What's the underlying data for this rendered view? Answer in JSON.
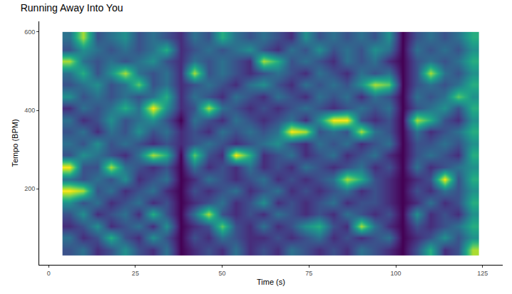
{
  "chart_data": {
    "type": "heatmap",
    "title": "Running Away Into You",
    "x_label": "Time (s)",
    "y_label": "Tempo (BPM)",
    "x": [
      6,
      10,
      14,
      18,
      22,
      26,
      30,
      34,
      38,
      42,
      46,
      50,
      54,
      58,
      62,
      66,
      70,
      74,
      78,
      82,
      86,
      90,
      94,
      98,
      102,
      106,
      110,
      114,
      118,
      122
    ],
    "y": [
      45,
      75,
      105,
      135,
      165,
      195,
      225,
      255,
      285,
      315,
      345,
      375,
      405,
      435,
      465,
      495,
      525,
      555,
      585
    ],
    "color": "viridis",
    "xlim": [
      -2.7,
      130.8
    ],
    "xticks": [
      0,
      25,
      50,
      75,
      100,
      125
    ],
    "ylim": [
      6,
      627
    ],
    "yticks": [
      200,
      400,
      600
    ],
    "z": [
      [
        3,
        4,
        2,
        3,
        5,
        3,
        2,
        4,
        1,
        2,
        3,
        2,
        4,
        2,
        3,
        2,
        4,
        3,
        2,
        3,
        2,
        4,
        3,
        2,
        1,
        3,
        6,
        2,
        3,
        8
      ],
      [
        4,
        2,
        3,
        6,
        3,
        2,
        5,
        3,
        1,
        3,
        2,
        4,
        3,
        2,
        2,
        3,
        2,
        3,
        4,
        2,
        3,
        2,
        3,
        4,
        1,
        2,
        3,
        5,
        3,
        5
      ],
      [
        2,
        3,
        5,
        2,
        3,
        4,
        2,
        5,
        1,
        2,
        3,
        7,
        3,
        2,
        4,
        2,
        3,
        5,
        6,
        3,
        2,
        8,
        4,
        2,
        1,
        3,
        2,
        3,
        4,
        6
      ],
      [
        3,
        5,
        2,
        3,
        4,
        2,
        6,
        3,
        1,
        4,
        8,
        3,
        2,
        3,
        2,
        4,
        3,
        2,
        3,
        2,
        4,
        3,
        2,
        3,
        1,
        5,
        2,
        3,
        2,
        5
      ],
      [
        5,
        3,
        4,
        2,
        3,
        4,
        2,
        3,
        1,
        2,
        3,
        4,
        2,
        3,
        5,
        2,
        3,
        2,
        3,
        4,
        2,
        3,
        3,
        2,
        1,
        2,
        4,
        2,
        3,
        6
      ],
      [
        9,
        8,
        3,
        4,
        2,
        3,
        4,
        2,
        1,
        3,
        2,
        3,
        4,
        2,
        3,
        4,
        2,
        3,
        2,
        3,
        4,
        2,
        3,
        2,
        1,
        3,
        2,
        4,
        3,
        5
      ],
      [
        4,
        3,
        4,
        3,
        5,
        2,
        3,
        4,
        1,
        2,
        4,
        3,
        2,
        3,
        4,
        2,
        3,
        2,
        3,
        4,
        8,
        6,
        3,
        2,
        1,
        2,
        3,
        9,
        3,
        6
      ],
      [
        9,
        3,
        3,
        8,
        4,
        3,
        2,
        3,
        1,
        4,
        2,
        3,
        2,
        4,
        2,
        3,
        2,
        4,
        3,
        2,
        3,
        4,
        2,
        3,
        1,
        4,
        2,
        3,
        4,
        5
      ],
      [
        3,
        5,
        4,
        3,
        2,
        4,
        8,
        6,
        1,
        7,
        3,
        2,
        9,
        6,
        2,
        3,
        4,
        2,
        3,
        4,
        2,
        3,
        4,
        2,
        1,
        3,
        4,
        3,
        2,
        6
      ],
      [
        4,
        3,
        5,
        3,
        4,
        3,
        2,
        3,
        2,
        3,
        4,
        3,
        2,
        3,
        4,
        5,
        3,
        2,
        4,
        3,
        4,
        2,
        3,
        4,
        1,
        3,
        3,
        4,
        3,
        5
      ],
      [
        3,
        4,
        2,
        4,
        3,
        5,
        3,
        4,
        2,
        3,
        2,
        4,
        3,
        4,
        3,
        4,
        9,
        8,
        3,
        4,
        3,
        8,
        4,
        3,
        1,
        4,
        2,
        3,
        4,
        6
      ],
      [
        4,
        2,
        3,
        5,
        3,
        4,
        5,
        3,
        1,
        4,
        3,
        2,
        4,
        3,
        2,
        3,
        4,
        2,
        5,
        9,
        9,
        3,
        2,
        3,
        1,
        8,
        6,
        3,
        2,
        5
      ],
      [
        2,
        4,
        3,
        4,
        6,
        4,
        9,
        5,
        2,
        3,
        8,
        4,
        3,
        2,
        3,
        2,
        3,
        4,
        3,
        2,
        3,
        4,
        3,
        4,
        1,
        3,
        4,
        5,
        3,
        6
      ],
      [
        5,
        3,
        4,
        3,
        4,
        3,
        4,
        6,
        2,
        4,
        3,
        2,
        4,
        3,
        2,
        4,
        3,
        2,
        4,
        3,
        4,
        2,
        4,
        3,
        1,
        4,
        3,
        4,
        7,
        5
      ],
      [
        3,
        4,
        5,
        3,
        4,
        7,
        3,
        4,
        2,
        3,
        4,
        3,
        2,
        4,
        5,
        3,
        2,
        4,
        3,
        4,
        3,
        5,
        8,
        7,
        1,
        3,
        4,
        3,
        4,
        6
      ],
      [
        4,
        6,
        3,
        5,
        8,
        4,
        3,
        4,
        2,
        8,
        3,
        4,
        3,
        2,
        3,
        4,
        3,
        2,
        4,
        3,
        2,
        4,
        3,
        4,
        1,
        3,
        8,
        4,
        3,
        5
      ],
      [
        8,
        4,
        3,
        4,
        3,
        4,
        5,
        3,
        2,
        4,
        3,
        4,
        3,
        2,
        8,
        6,
        3,
        4,
        3,
        2,
        4,
        3,
        4,
        2,
        1,
        3,
        4,
        3,
        4,
        6
      ],
      [
        3,
        5,
        4,
        3,
        4,
        3,
        4,
        6,
        2,
        3,
        4,
        3,
        4,
        5,
        3,
        2,
        4,
        3,
        5,
        3,
        4,
        3,
        5,
        4,
        1,
        4,
        3,
        4,
        3,
        5
      ],
      [
        4,
        8,
        3,
        4,
        5,
        3,
        4,
        3,
        2,
        4,
        3,
        6,
        4,
        3,
        4,
        3,
        2,
        5,
        3,
        4,
        3,
        4,
        3,
        5,
        1,
        3,
        4,
        3,
        4,
        6
      ]
    ]
  }
}
